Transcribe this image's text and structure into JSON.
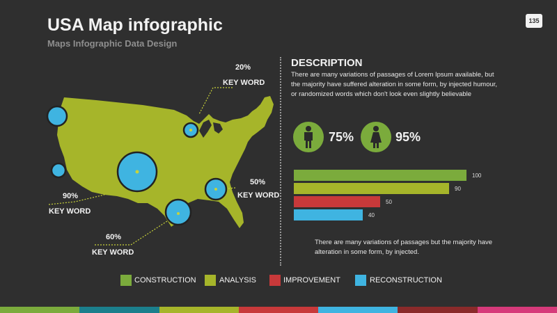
{
  "header": {
    "title": "USA Map infographic",
    "subtitle": "Maps Infographic Data Design",
    "page_number": "135"
  },
  "description": {
    "title": "DESCRIPTION",
    "body": "There are many variations of passages of Lorem Ipsum available, but the majority have suffered alteration in some form, by injected humour, or randomized words which don't look even slightly believable"
  },
  "people": [
    {
      "icon": "male-icon",
      "percent": "75%"
    },
    {
      "icon": "female-icon",
      "percent": "95%"
    }
  ],
  "bars": [
    {
      "label": "100",
      "value": 100,
      "color": "#7bab3c"
    },
    {
      "label": "90",
      "value": 90,
      "color": "#a6b52a"
    },
    {
      "label": "50",
      "value": 50,
      "color": "#c8393a"
    },
    {
      "label": "40",
      "value": 40,
      "color": "#3fb4e1"
    }
  ],
  "note": "There are many variations of passages but the majority have alteration in some form, by injected.",
  "callouts": [
    {
      "percent": "20%",
      "keyword": "KEY WORD"
    },
    {
      "percent": "90%",
      "keyword": "KEY WORD"
    },
    {
      "percent": "50%",
      "keyword": "KEY WORD"
    },
    {
      "percent": "60%",
      "keyword": "KEY WORD"
    }
  ],
  "legend": [
    {
      "label": "CONSTRUCTION",
      "color": "#7bab3c"
    },
    {
      "label": "ANALYSIS",
      "color": "#a6b52a"
    },
    {
      "label": "IMPROVEMENT",
      "color": "#c8393a"
    },
    {
      "label": "RECONSTRUCTION",
      "color": "#3fb4e1"
    }
  ],
  "colors": {
    "background": "#2f2f2f",
    "map": "#a6b52a",
    "circle": "#3fb4e1",
    "green": "#7bab3c",
    "red": "#c8393a",
    "footer": [
      "#7bab3c",
      "#1b7f8c",
      "#a6b52a",
      "#c8393a",
      "#3fb4e1",
      "#8a2a2a",
      "#d63a7a"
    ]
  }
}
